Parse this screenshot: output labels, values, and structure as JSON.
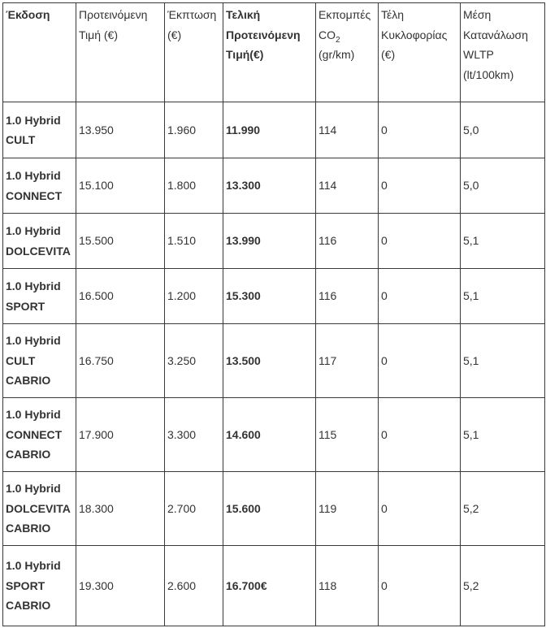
{
  "headers": [
    {
      "text": "Έκδοση",
      "bold": true
    },
    {
      "text": "Προτεινόμενη\nΤιμή (€)",
      "bold": false
    },
    {
      "text": "Έκπτωση\n(€)",
      "bold": false
    },
    {
      "text": "Τελική\nΠροτεινόμενη\nΤιμή(€)",
      "bold": true
    },
    {
      "text": "Εκπομπές\nCO",
      "sub": "2",
      "after": "\n(gr/km)",
      "bold": false
    },
    {
      "text": "Τέλη\nΚυκλοφορίας\n(€)",
      "bold": false
    },
    {
      "text": "Μέση\nΚατανάλωση\nWLTP\n(lt/100km)",
      "bold": false
    }
  ],
  "rows": [
    [
      "1.0 Hybrid\nCULT",
      "13.950",
      "1.960",
      "11.990",
      "114",
      "0",
      "5,0"
    ],
    [
      "1.0 Hybrid\nCONNECT",
      "15.100",
      "1.800",
      "13.300",
      "114",
      "0",
      "5,0"
    ],
    [
      "1.0 Hybrid\nDOLCEVITA",
      "15.500",
      "1.510",
      "13.990",
      "116",
      "0",
      "5,1"
    ],
    [
      "1.0 Hybrid\nSPORT",
      "16.500",
      "1.200",
      "15.300",
      "116",
      "0",
      "5,1"
    ],
    [
      "1.0 Hybrid\nCULT\nCABRIO",
      "16.750",
      "3.250",
      "13.500",
      "117",
      "0",
      "5,1"
    ],
    [
      "1.0 Hybrid\nCONNECT\nCABRIO",
      "17.900",
      "3.300",
      "14.600",
      "115",
      "0",
      "5,1"
    ],
    [
      "1.0 Hybrid\nDOLCEVITA\nCABRIO",
      "18.300",
      "2.700",
      "15.600",
      "119",
      "0",
      "5,2"
    ],
    [
      "1.0 Hybrid\nSPORT\nCABRIO",
      "19.300",
      "2.600",
      "16.700€",
      "118",
      "0",
      "5,2"
    ]
  ]
}
